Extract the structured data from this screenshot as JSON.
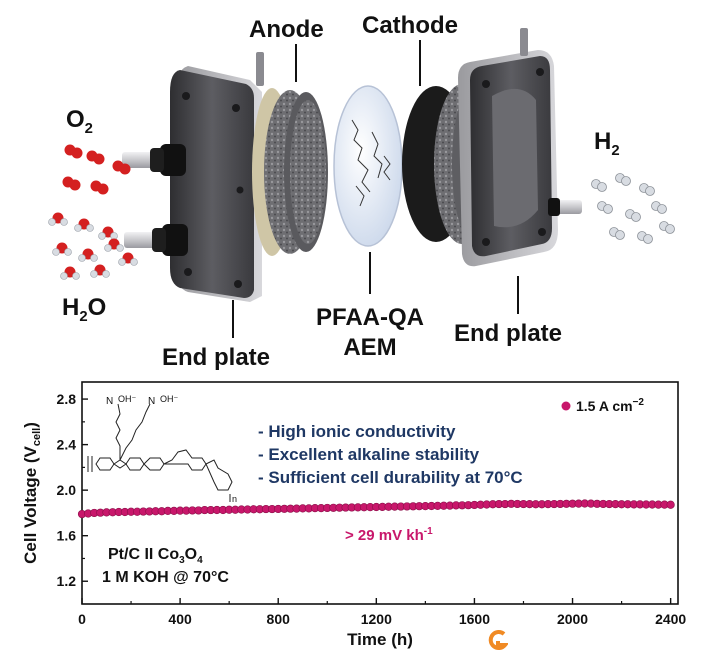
{
  "diagram": {
    "labels": {
      "anode": "Anode",
      "cathode": "Cathode",
      "o2_main": "O",
      "o2_sub": "2",
      "h2_main": "H",
      "h2_sub": "2",
      "h2o_main": "H",
      "h2o_sub": "2",
      "h2o_tail": "O",
      "membrane_line1": "PFAA-QA",
      "membrane_line2": "AEM",
      "end_plate_left": "End plate",
      "end_plate_right": "End plate"
    },
    "colors": {
      "oxygen": "#d42020",
      "hydrogen": "#d8dce2",
      "plate": "#4a4a4e",
      "cathode_disc": "#1b1b1b"
    }
  },
  "chart_data": {
    "type": "scatter",
    "x": [
      0,
      25,
      50,
      75,
      100,
      125,
      150,
      175,
      200,
      225,
      250,
      275,
      300,
      325,
      350,
      375,
      400,
      425,
      450,
      475,
      500,
      525,
      550,
      575,
      600,
      625,
      650,
      675,
      700,
      725,
      750,
      775,
      800,
      825,
      850,
      875,
      900,
      925,
      950,
      975,
      1000,
      1025,
      1050,
      1075,
      1100,
      1125,
      1150,
      1175,
      1200,
      1225,
      1250,
      1275,
      1300,
      1325,
      1350,
      1375,
      1400,
      1425,
      1450,
      1475,
      1500,
      1525,
      1550,
      1575,
      1600,
      1625,
      1650,
      1675,
      1700,
      1725,
      1750,
      1775,
      1800,
      1825,
      1850,
      1875,
      1900,
      1925,
      1950,
      1975,
      2000,
      2025,
      2050,
      2075,
      2100,
      2125,
      2150,
      2175,
      2200,
      2225,
      2250,
      2275,
      2300,
      2325,
      2350,
      2375,
      2400
    ],
    "series": [
      {
        "name": "1.5 A cm⁻²",
        "color": "#c8176b",
        "values": [
          1.79,
          1.795,
          1.8,
          1.802,
          1.805,
          1.806,
          1.808,
          1.808,
          1.81,
          1.81,
          1.812,
          1.813,
          1.815,
          1.815,
          1.818,
          1.818,
          1.82,
          1.82,
          1.822,
          1.822,
          1.825,
          1.825,
          1.826,
          1.826,
          1.828,
          1.828,
          1.83,
          1.83,
          1.832,
          1.832,
          1.834,
          1.834,
          1.835,
          1.836,
          1.837,
          1.838,
          1.84,
          1.84,
          1.842,
          1.842,
          1.844,
          1.845,
          1.846,
          1.847,
          1.848,
          1.849,
          1.85,
          1.851,
          1.852,
          1.853,
          1.854,
          1.855,
          1.856,
          1.857,
          1.858,
          1.859,
          1.86,
          1.861,
          1.862,
          1.863,
          1.864,
          1.866,
          1.867,
          1.868,
          1.87,
          1.872,
          1.874,
          1.876,
          1.878,
          1.878,
          1.88,
          1.879,
          1.878,
          1.877,
          1.876,
          1.876,
          1.877,
          1.878,
          1.879,
          1.88,
          1.881,
          1.882,
          1.883,
          1.882,
          1.88,
          1.879,
          1.878,
          1.877,
          1.876,
          1.876,
          1.875,
          1.875,
          1.874,
          1.874,
          1.873,
          1.873,
          1.872
        ]
      }
    ],
    "xlabel": "Time (h)",
    "ylabel_main": "Cell Voltage (V",
    "ylabel_sub": "cell",
    "ylabel_tail": ")",
    "xlim": [
      0,
      2430
    ],
    "ylim": [
      1.0,
      2.95
    ],
    "xticks": [
      0,
      400,
      800,
      1200,
      1600,
      2000,
      2400
    ],
    "xtick_labels": [
      "0",
      "400",
      "800",
      "1200",
      "1600",
      "2000",
      "2400"
    ],
    "yticks": [
      1.2,
      1.6,
      2.0,
      2.4,
      2.8
    ],
    "ytick_labels": [
      "1.2",
      "1.6",
      "2.0",
      "2.4",
      "2.8"
    ],
    "legend": {
      "label_main": "1.5 A cm",
      "label_sup": "−2",
      "placement": "top-right"
    },
    "annotations": {
      "bullets": [
        "- High ionic conductivity",
        "- Excellent alkaline stability",
        "- Sufficient cell durability at 70°C"
      ],
      "decay_rate": "> 29 mV kh",
      "decay_rate_sup": "-1",
      "catalysts_a": "Pt/C II Co",
      "catalysts_sub1": "3",
      "catalysts_b": "O",
      "catalysts_sub2": "4",
      "conditions": "1 M KOH @ 70°C",
      "struct_n_plus": "N",
      "struct_oh": "OH⁻",
      "struct_n": "n"
    },
    "grid": false
  }
}
